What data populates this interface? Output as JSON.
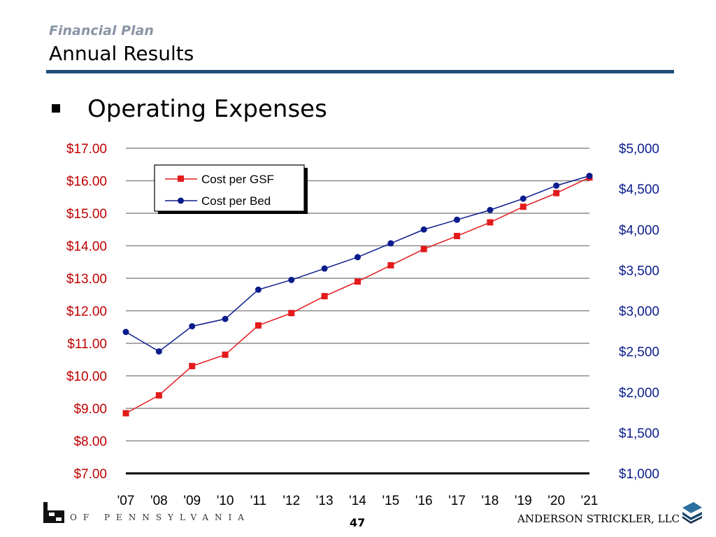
{
  "header": {
    "kicker": "Financial Plan",
    "title": "Annual Results"
  },
  "section": {
    "heading": "Operating Expenses"
  },
  "chart_data": {
    "type": "line",
    "categories": [
      "'07",
      "'08",
      "'09",
      "'10",
      "'11",
      "'12",
      "'13",
      "'14",
      "'15",
      "'16",
      "'17",
      "'18",
      "'19",
      "'20",
      "'21"
    ],
    "y_left": {
      "range": [
        7,
        17
      ],
      "tick_labels": [
        "$17.00",
        "$16.00",
        "$15.00",
        "$14.00",
        "$13.00",
        "$12.00",
        "$11.00",
        "$10.00",
        "$9.00",
        "$8.00",
        "$7.00"
      ],
      "tick_values": [
        17,
        16,
        15,
        14,
        13,
        12,
        11,
        10,
        9,
        8,
        7
      ]
    },
    "y_right": {
      "range": [
        1000,
        5000
      ],
      "tick_labels": [
        "$5,000",
        "$4,500",
        "$4,000",
        "$3,500",
        "$3,000",
        "$2,500",
        "$2,000",
        "$1,500",
        "$1,000"
      ],
      "tick_values": [
        5000,
        4500,
        4000,
        3500,
        3000,
        2500,
        2000,
        1500,
        1000
      ]
    },
    "series": [
      {
        "name": "Cost per GSF",
        "axis": "left",
        "color": "#e31a1c",
        "marker": "square",
        "values": [
          8.85,
          9.4,
          10.3,
          10.65,
          11.55,
          11.93,
          12.45,
          12.9,
          13.4,
          13.9,
          14.3,
          14.72,
          15.2,
          15.62,
          16.1
        ]
      },
      {
        "name": "Cost per Bed",
        "axis": "right",
        "color": "#0a1c8c",
        "marker": "circle",
        "values": [
          2740,
          2500,
          2810,
          2900,
          3260,
          3380,
          3520,
          3660,
          3830,
          4000,
          4120,
          4240,
          4380,
          4540,
          4660
        ]
      }
    ],
    "grid": true,
    "legend_position": "top-left"
  },
  "footer": {
    "university": "OF PENNSYLVANIA",
    "page_number": "47",
    "firm": "ANDERSON STRICKLER, LLC"
  },
  "colors": {
    "rule": "#1f4e79",
    "left_axis_text": "#c00000",
    "right_axis_text": "#0a1c8c"
  }
}
